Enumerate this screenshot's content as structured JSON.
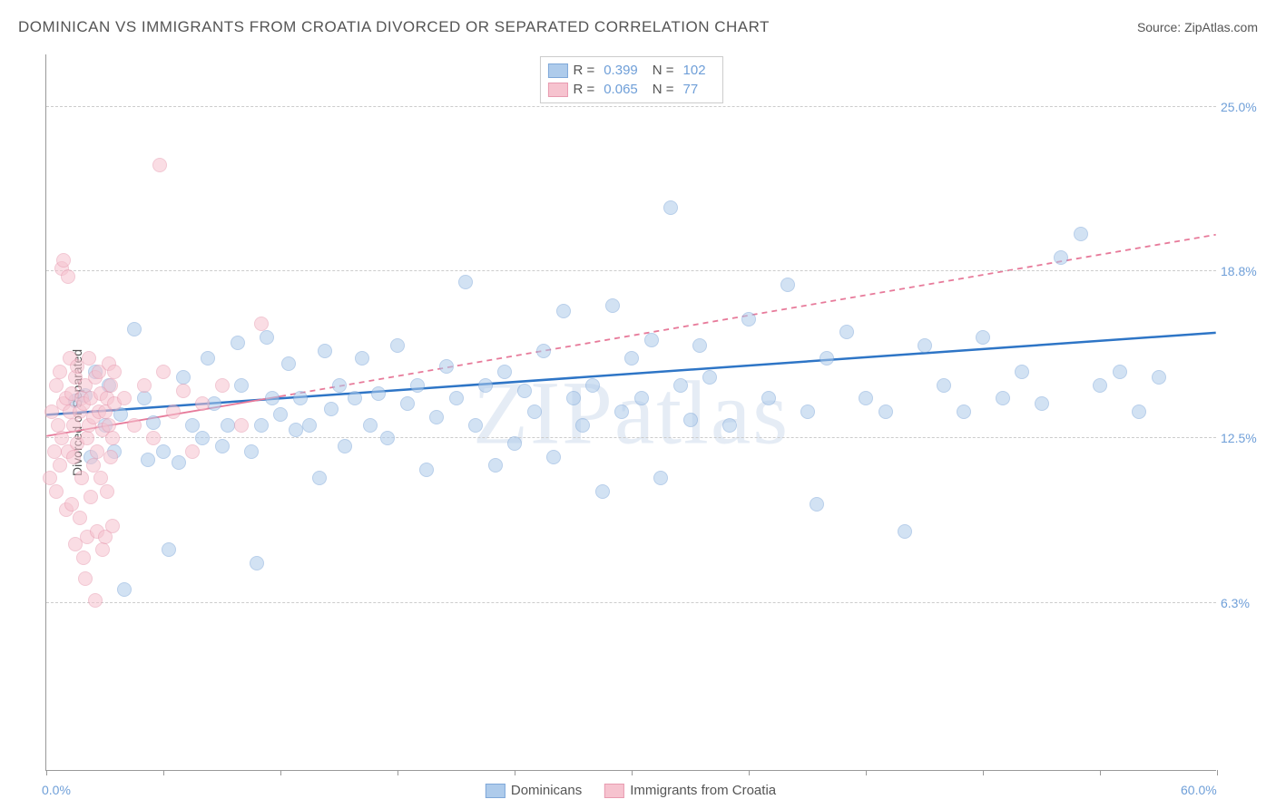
{
  "header": {
    "title": "DOMINICAN VS IMMIGRANTS FROM CROATIA DIVORCED OR SEPARATED CORRELATION CHART",
    "source_label": "Source: ",
    "source_name": "ZipAtlas.com"
  },
  "chart": {
    "type": "scatter",
    "ylabel": "Divorced or Separated",
    "watermark": "ZIPatlas",
    "background_color": "#ffffff",
    "grid_color": "#cccccc",
    "axis_color": "#999999",
    "tick_label_color": "#6f9fd8",
    "xlim": [
      0,
      60
    ],
    "ylim": [
      0,
      27
    ],
    "xtick_positions": [
      0,
      6,
      12,
      18,
      24,
      30,
      36,
      42,
      48,
      54,
      60
    ],
    "xtick_labels": {
      "first": "0.0%",
      "last": "60.0%"
    },
    "ytick_positions": [
      6.3,
      12.5,
      18.8,
      25.0
    ],
    "ytick_labels": [
      "6.3%",
      "12.5%",
      "18.8%",
      "25.0%"
    ],
    "point_radius": 8,
    "point_opacity": 0.55,
    "series": [
      {
        "name": "Dominicans",
        "fill_color": "#aecbeb",
        "stroke_color": "#7fa8d9",
        "trend_color": "#2e75c6",
        "trend_dash": "none",
        "trend_width": 2.5,
        "r": "0.399",
        "n": "102",
        "trend": {
          "x1": 0,
          "y1": 13.4,
          "x2": 60,
          "y2": 16.5
        },
        "points": [
          [
            1.5,
            13.9
          ],
          [
            2.0,
            14.1
          ],
          [
            2.3,
            11.8
          ],
          [
            2.5,
            15.0
          ],
          [
            3.0,
            13.0
          ],
          [
            3.2,
            14.5
          ],
          [
            3.5,
            12.0
          ],
          [
            3.8,
            13.4
          ],
          [
            4.0,
            6.8
          ],
          [
            4.5,
            16.6
          ],
          [
            5.0,
            14.0
          ],
          [
            5.2,
            11.7
          ],
          [
            5.5,
            13.1
          ],
          [
            6.0,
            12.0
          ],
          [
            6.3,
            8.3
          ],
          [
            6.8,
            11.6
          ],
          [
            7.0,
            14.8
          ],
          [
            7.5,
            13.0
          ],
          [
            8.0,
            12.5
          ],
          [
            8.3,
            15.5
          ],
          [
            8.6,
            13.8
          ],
          [
            9.0,
            12.2
          ],
          [
            9.3,
            13.0
          ],
          [
            9.8,
            16.1
          ],
          [
            10.0,
            14.5
          ],
          [
            10.5,
            12.0
          ],
          [
            10.8,
            7.8
          ],
          [
            11.0,
            13.0
          ],
          [
            11.3,
            16.3
          ],
          [
            11.6,
            14.0
          ],
          [
            12.0,
            13.4
          ],
          [
            12.4,
            15.3
          ],
          [
            12.8,
            12.8
          ],
          [
            13.0,
            14.0
          ],
          [
            13.5,
            13.0
          ],
          [
            14.0,
            11.0
          ],
          [
            14.3,
            15.8
          ],
          [
            14.6,
            13.6
          ],
          [
            15.0,
            14.5
          ],
          [
            15.3,
            12.2
          ],
          [
            15.8,
            14.0
          ],
          [
            16.2,
            15.5
          ],
          [
            16.6,
            13.0
          ],
          [
            17.0,
            14.2
          ],
          [
            17.5,
            12.5
          ],
          [
            18.0,
            16.0
          ],
          [
            18.5,
            13.8
          ],
          [
            19.0,
            14.5
          ],
          [
            19.5,
            11.3
          ],
          [
            20.0,
            13.3
          ],
          [
            20.5,
            15.2
          ],
          [
            21.0,
            14.0
          ],
          [
            21.5,
            18.4
          ],
          [
            22.0,
            13.0
          ],
          [
            22.5,
            14.5
          ],
          [
            23.0,
            11.5
          ],
          [
            23.5,
            15.0
          ],
          [
            24.0,
            12.3
          ],
          [
            24.5,
            14.3
          ],
          [
            25.0,
            13.5
          ],
          [
            25.5,
            15.8
          ],
          [
            26.0,
            11.8
          ],
          [
            26.5,
            17.3
          ],
          [
            27.0,
            14.0
          ],
          [
            27.5,
            13.0
          ],
          [
            28.0,
            14.5
          ],
          [
            28.5,
            10.5
          ],
          [
            29.0,
            17.5
          ],
          [
            29.5,
            13.5
          ],
          [
            30.0,
            15.5
          ],
          [
            30.5,
            14.0
          ],
          [
            31.0,
            16.2
          ],
          [
            31.5,
            11.0
          ],
          [
            32.0,
            21.2
          ],
          [
            32.5,
            14.5
          ],
          [
            33.0,
            13.2
          ],
          [
            33.5,
            16.0
          ],
          [
            34.0,
            14.8
          ],
          [
            35.0,
            13.0
          ],
          [
            36.0,
            17.0
          ],
          [
            37.0,
            14.0
          ],
          [
            38.0,
            18.3
          ],
          [
            39.0,
            13.5
          ],
          [
            39.5,
            10.0
          ],
          [
            40.0,
            15.5
          ],
          [
            41.0,
            16.5
          ],
          [
            42.0,
            14.0
          ],
          [
            43.0,
            13.5
          ],
          [
            44.0,
            9.0
          ],
          [
            45.0,
            16.0
          ],
          [
            46.0,
            14.5
          ],
          [
            47.0,
            13.5
          ],
          [
            48.0,
            16.3
          ],
          [
            49.0,
            14.0
          ],
          [
            50.0,
            15.0
          ],
          [
            51.0,
            13.8
          ],
          [
            52.0,
            19.3
          ],
          [
            53.0,
            20.2
          ],
          [
            54.0,
            14.5
          ],
          [
            55.0,
            15.0
          ],
          [
            56.0,
            13.5
          ],
          [
            57.0,
            14.8
          ]
        ]
      },
      {
        "name": "Immigrants from Croatia",
        "fill_color": "#f6c3cf",
        "stroke_color": "#e89bb0",
        "trend_color": "#e77a9a",
        "trend_dash": "solid_then_dash",
        "trend_width": 1.8,
        "r": "0.065",
        "n": "77",
        "trend": {
          "x1": 0,
          "y1": 12.6,
          "x2_solid": 12,
          "y2_solid": 14.1,
          "x2": 60,
          "y2": 20.2
        },
        "points": [
          [
            0.2,
            11.0
          ],
          [
            0.3,
            13.5
          ],
          [
            0.4,
            12.0
          ],
          [
            0.5,
            14.5
          ],
          [
            0.5,
            10.5
          ],
          [
            0.6,
            13.0
          ],
          [
            0.7,
            15.0
          ],
          [
            0.7,
            11.5
          ],
          [
            0.8,
            18.9
          ],
          [
            0.8,
            12.5
          ],
          [
            0.9,
            13.8
          ],
          [
            0.9,
            19.2
          ],
          [
            1.0,
            14.0
          ],
          [
            1.0,
            9.8
          ],
          [
            1.1,
            18.6
          ],
          [
            1.1,
            12.0
          ],
          [
            1.2,
            13.5
          ],
          [
            1.2,
            15.5
          ],
          [
            1.3,
            10.0
          ],
          [
            1.3,
            14.2
          ],
          [
            1.4,
            11.8
          ],
          [
            1.4,
            13.0
          ],
          [
            1.5,
            8.5
          ],
          [
            1.5,
            14.8
          ],
          [
            1.6,
            12.3
          ],
          [
            1.6,
            15.2
          ],
          [
            1.7,
            13.5
          ],
          [
            1.7,
            9.5
          ],
          [
            1.8,
            14.0
          ],
          [
            1.8,
            11.0
          ],
          [
            1.9,
            8.0
          ],
          [
            1.9,
            13.8
          ],
          [
            2.0,
            7.2
          ],
          [
            2.0,
            14.5
          ],
          [
            2.1,
            12.5
          ],
          [
            2.1,
            8.8
          ],
          [
            2.2,
            13.0
          ],
          [
            2.2,
            15.5
          ],
          [
            2.3,
            10.3
          ],
          [
            2.3,
            14.0
          ],
          [
            2.4,
            11.5
          ],
          [
            2.4,
            13.3
          ],
          [
            2.5,
            6.4
          ],
          [
            2.5,
            14.8
          ],
          [
            2.6,
            12.0
          ],
          [
            2.6,
            9.0
          ],
          [
            2.7,
            13.5
          ],
          [
            2.7,
            15.0
          ],
          [
            2.8,
            11.0
          ],
          [
            2.8,
            14.2
          ],
          [
            2.9,
            8.3
          ],
          [
            2.9,
            12.8
          ],
          [
            3.0,
            13.5
          ],
          [
            3.0,
            8.8
          ],
          [
            3.1,
            14.0
          ],
          [
            3.1,
            10.5
          ],
          [
            3.2,
            13.0
          ],
          [
            3.2,
            15.3
          ],
          [
            3.3,
            11.8
          ],
          [
            3.3,
            14.5
          ],
          [
            3.4,
            12.5
          ],
          [
            3.4,
            9.2
          ],
          [
            3.5,
            13.8
          ],
          [
            3.5,
            15.0
          ],
          [
            4.0,
            14.0
          ],
          [
            4.5,
            13.0
          ],
          [
            5.0,
            14.5
          ],
          [
            5.5,
            12.5
          ],
          [
            5.8,
            22.8
          ],
          [
            6.0,
            15.0
          ],
          [
            6.5,
            13.5
          ],
          [
            7.0,
            14.3
          ],
          [
            7.5,
            12.0
          ],
          [
            8.0,
            13.8
          ],
          [
            9.0,
            14.5
          ],
          [
            10.0,
            13.0
          ],
          [
            11.0,
            16.8
          ]
        ]
      }
    ],
    "legend_bottom": [
      {
        "label": "Dominicans",
        "fill": "#aecbeb",
        "stroke": "#7fa8d9"
      },
      {
        "label": "Immigrants from Croatia",
        "fill": "#f6c3cf",
        "stroke": "#e89bb0"
      }
    ]
  }
}
